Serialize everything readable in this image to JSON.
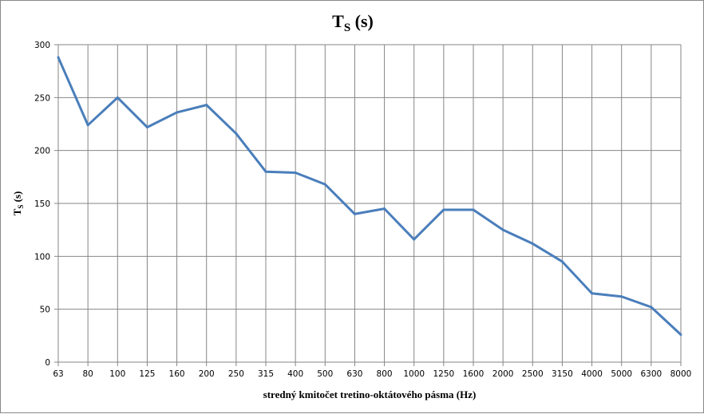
{
  "chart_data": {
    "type": "line",
    "title": "T",
    "title_sub": "S",
    "title_suffix": " (s)",
    "ylabel": "T",
    "ylabel_sub": "S",
    "ylabel_suffix": " (s)",
    "xlabel": "stredný kmitočet tretino-oktátového pásma (Hz)",
    "categories": [
      "63",
      "80",
      "100",
      "125",
      "160",
      "200",
      "250",
      "315",
      "400",
      "500",
      "630",
      "800",
      "1000",
      "1250",
      "1600",
      "2000",
      "2500",
      "3150",
      "4000",
      "5000",
      "6300",
      "8000"
    ],
    "series": [
      {
        "name": "Ts (s)",
        "color": "#4a7ebb",
        "values": [
          288,
          224,
          250,
          222,
          236,
          243,
          216,
          180,
          179,
          168,
          140,
          145,
          116,
          144,
          144,
          125,
          112,
          95,
          65,
          62,
          52,
          26
        ]
      }
    ],
    "ylim": [
      0,
      300
    ],
    "yticks": [
      0,
      50,
      100,
      150,
      200,
      250,
      300
    ],
    "grid": true,
    "legend": "none"
  }
}
